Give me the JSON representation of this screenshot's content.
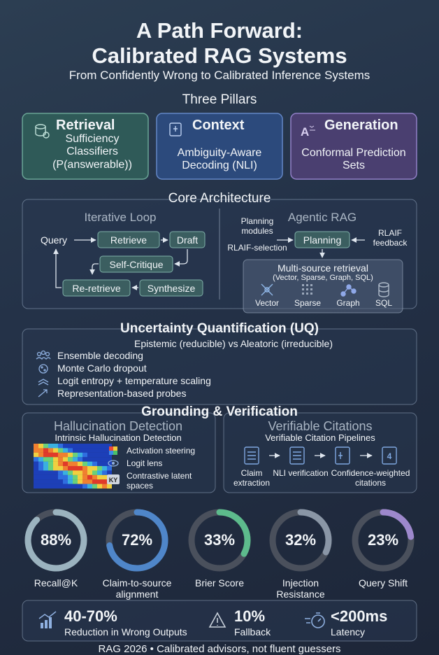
{
  "header": {
    "title_line1": "A Path Forward:",
    "title_line2": "Calibrated RAG Systems",
    "subtitle": "From Confidently Wrong to Calibrated Inference Systems"
  },
  "pillars": {
    "heading": "Three Pillars",
    "items": [
      {
        "title": "Retrieval",
        "text": "Sufficiency Classifiers (P(answerable))"
      },
      {
        "title": "Context",
        "text": "Ambiguity-Aware Decoding (NLI)"
      },
      {
        "title": "Generation",
        "text": "Conformal Prediction Sets"
      }
    ]
  },
  "core": {
    "heading": "Core Architecture",
    "loop": {
      "title": "Iterative Loop",
      "nodes": [
        "Query",
        "Retrieve",
        "Draft",
        "Self-Critique",
        "Synthesize",
        "Re-retrieve"
      ]
    },
    "agentic": {
      "title": "Agentic RAG",
      "planning_modules": "Planning modules",
      "selection": "RLAIF-selection",
      "planning": "Planning",
      "feedback": "RLAIF feedback",
      "retrieval": {
        "title": "Multi-source retrieval",
        "subtitle": "(Vector, Sparse, Graph, SQL)",
        "sources": [
          "Vector",
          "Sparse",
          "Graph",
          "SQL"
        ]
      }
    }
  },
  "uq": {
    "heading": "Uncertainty Quantification (UQ)",
    "subtitle": "Epistemic (reducible) vs Aleatoric (irreducible)",
    "items": [
      "Ensemble decoding",
      "Monte Carlo dropout",
      "Logit entropy + temperature scaling",
      "Representation-based probes"
    ]
  },
  "grounding": {
    "heading": "Grounding & Verification",
    "hallucination": {
      "title": "Hallucination Detection",
      "subtitle": "Intrinsic Hallucination Detection",
      "items": [
        "Activation steering",
        "Logit lens",
        "Contrastive latent spaces"
      ]
    },
    "citations": {
      "title": "Verifiable Citations",
      "subtitle": "Verifiable Citation Pipelines",
      "steps": [
        "Claim extraction",
        "NLI verification",
        "Confidence-weighted citations"
      ]
    }
  },
  "metrics": {
    "values": [
      88,
      72,
      33,
      32,
      23
    ],
    "value_labels": [
      "88%",
      "72%",
      "33%",
      "32%",
      "23%"
    ],
    "labels": [
      "Recall@K",
      "Claim-to-source alignment",
      "Brier Score",
      "Injection Resistance",
      "Query Shift"
    ],
    "colors": [
      "#9bb3bf",
      "#4f86c9",
      "#5dbb8c",
      "#8a96a6",
      "#9d88cc"
    ]
  },
  "stats": [
    {
      "value": "40-70%",
      "label": "Reduction in Wrong Outputs"
    },
    {
      "value": "10%",
      "label": "Fallback"
    },
    {
      "value": "<200ms",
      "label": "Latency"
    }
  ],
  "footer": "RAG 2026 • Calibrated advisors, not fluent guessers"
}
